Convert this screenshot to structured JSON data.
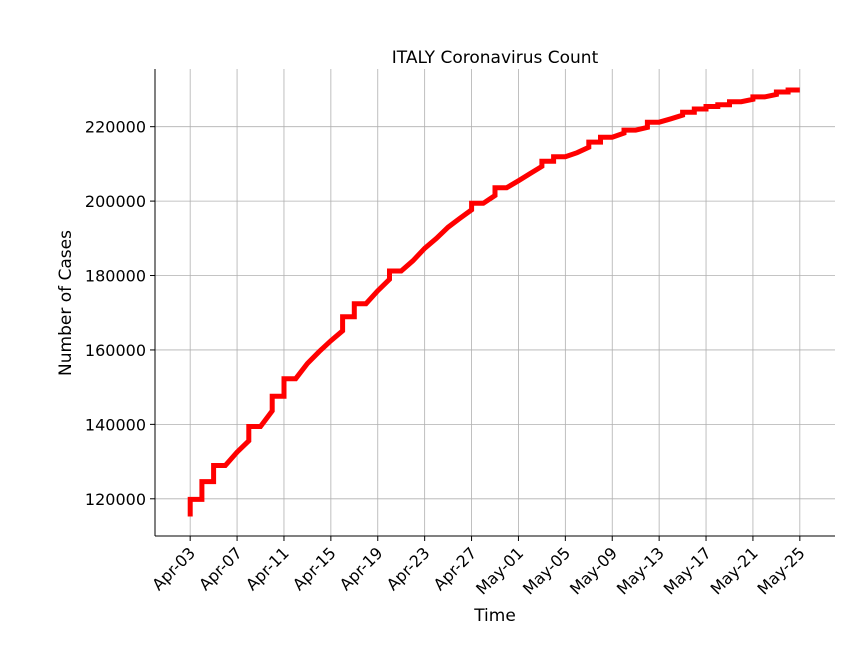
{
  "chart_data": {
    "type": "line",
    "title": "ITALY Coronavirus Count",
    "xlabel": "Time",
    "ylabel": "Number of Cases",
    "x_ticks": [
      "Apr-03",
      "Apr-07",
      "Apr-11",
      "Apr-15",
      "Apr-19",
      "Apr-23",
      "Apr-27",
      "May-01",
      "May-05",
      "May-09",
      "May-13",
      "May-17",
      "May-21",
      "May-25"
    ],
    "y_ticks": [
      120000,
      140000,
      160000,
      180000,
      200000,
      220000
    ],
    "xlim": [
      "2020-04-00",
      "2020-05-28"
    ],
    "ylim": [
      110000,
      235500
    ],
    "grid": true,
    "line_color": "#ff0000",
    "series": [
      {
        "points": [
          [
            "2020-04-03",
            115242
          ],
          [
            "2020-04-03",
            119827
          ],
          [
            "2020-04-04",
            119827
          ],
          [
            "2020-04-04",
            124632
          ],
          [
            "2020-04-05",
            124632
          ],
          [
            "2020-04-05",
            128948
          ],
          [
            "2020-04-06",
            128948
          ],
          [
            "2020-04-07",
            132547
          ],
          [
            "2020-04-08",
            135586
          ],
          [
            "2020-04-08",
            139422
          ],
          [
            "2020-04-09",
            139422
          ],
          [
            "2020-04-10",
            143626
          ],
          [
            "2020-04-10",
            147577
          ],
          [
            "2020-04-11",
            147577
          ],
          [
            "2020-04-11",
            152271
          ],
          [
            "2020-04-12",
            152271
          ],
          [
            "2020-04-13",
            156363
          ],
          [
            "2020-04-14",
            159516
          ],
          [
            "2020-04-15",
            162488
          ],
          [
            "2020-04-16",
            165155
          ],
          [
            "2020-04-16",
            168941
          ],
          [
            "2020-04-17",
            168941
          ],
          [
            "2020-04-17",
            172434
          ],
          [
            "2020-04-18",
            172434
          ],
          [
            "2020-04-19",
            175925
          ],
          [
            "2020-04-20",
            178972
          ],
          [
            "2020-04-20",
            181228
          ],
          [
            "2020-04-21",
            181228
          ],
          [
            "2020-04-22",
            183957
          ],
          [
            "2020-04-23",
            187327
          ],
          [
            "2020-04-24",
            189973
          ],
          [
            "2020-04-25",
            192994
          ],
          [
            "2020-04-26",
            195351
          ],
          [
            "2020-04-27",
            197675
          ],
          [
            "2020-04-27",
            199414
          ],
          [
            "2020-04-28",
            199414
          ],
          [
            "2020-04-29",
            201505
          ],
          [
            "2020-04-29",
            203591
          ],
          [
            "2020-04-30",
            203591
          ],
          [
            "2020-05-01",
            205463
          ],
          [
            "2020-05-02",
            207428
          ],
          [
            "2020-05-03",
            209328
          ],
          [
            "2020-05-03",
            210717
          ],
          [
            "2020-05-04",
            210717
          ],
          [
            "2020-05-04",
            211938
          ],
          [
            "2020-05-05",
            211938
          ],
          [
            "2020-05-06",
            213013
          ],
          [
            "2020-05-07",
            214457
          ],
          [
            "2020-05-07",
            215858
          ],
          [
            "2020-05-08",
            215858
          ],
          [
            "2020-05-08",
            217185
          ],
          [
            "2020-05-09",
            217185
          ],
          [
            "2020-05-10",
            218268
          ],
          [
            "2020-05-10",
            219070
          ],
          [
            "2020-05-11",
            219070
          ],
          [
            "2020-05-12",
            219814
          ],
          [
            "2020-05-12",
            221216
          ],
          [
            "2020-05-13",
            221216
          ],
          [
            "2020-05-14",
            222104
          ],
          [
            "2020-05-15",
            223096
          ],
          [
            "2020-05-15",
            223885
          ],
          [
            "2020-05-16",
            223885
          ],
          [
            "2020-05-16",
            224760
          ],
          [
            "2020-05-17",
            224760
          ],
          [
            "2020-05-17",
            225435
          ],
          [
            "2020-05-18",
            225435
          ],
          [
            "2020-05-18",
            225886
          ],
          [
            "2020-05-19",
            225886
          ],
          [
            "2020-05-19",
            226699
          ],
          [
            "2020-05-20",
            226699
          ],
          [
            "2020-05-21",
            227364
          ],
          [
            "2020-05-21",
            228006
          ],
          [
            "2020-05-22",
            228006
          ],
          [
            "2020-05-23",
            228658
          ],
          [
            "2020-05-23",
            229327
          ],
          [
            "2020-05-24",
            229327
          ],
          [
            "2020-05-24",
            229858
          ],
          [
            "2020-05-25",
            229858
          ]
        ]
      }
    ]
  }
}
